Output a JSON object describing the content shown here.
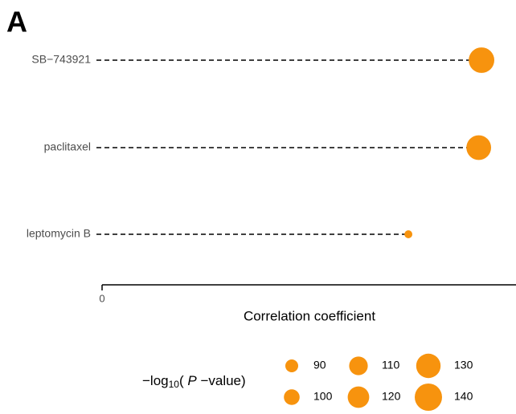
{
  "panel_label": "A",
  "chart_data": {
    "type": "lollipop",
    "categories": [
      "SB−743921",
      "paclitaxel",
      "leptomycin B"
    ],
    "values": [
      0.55,
      0.546,
      0.444
    ],
    "sizes": [
      134,
      131,
      73
    ],
    "color": "#f7930e",
    "xlabel": "Correlation coefficient",
    "xlim": [
      0,
      0.6
    ],
    "xticks": [
      0
    ],
    "size_legend": {
      "title_prefix": "−log",
      "title_subscript": "10",
      "title_open": "( ",
      "title_italic": "P",
      "title_rest": " −value)",
      "values": [
        90,
        100,
        110,
        120,
        130,
        140
      ]
    }
  }
}
